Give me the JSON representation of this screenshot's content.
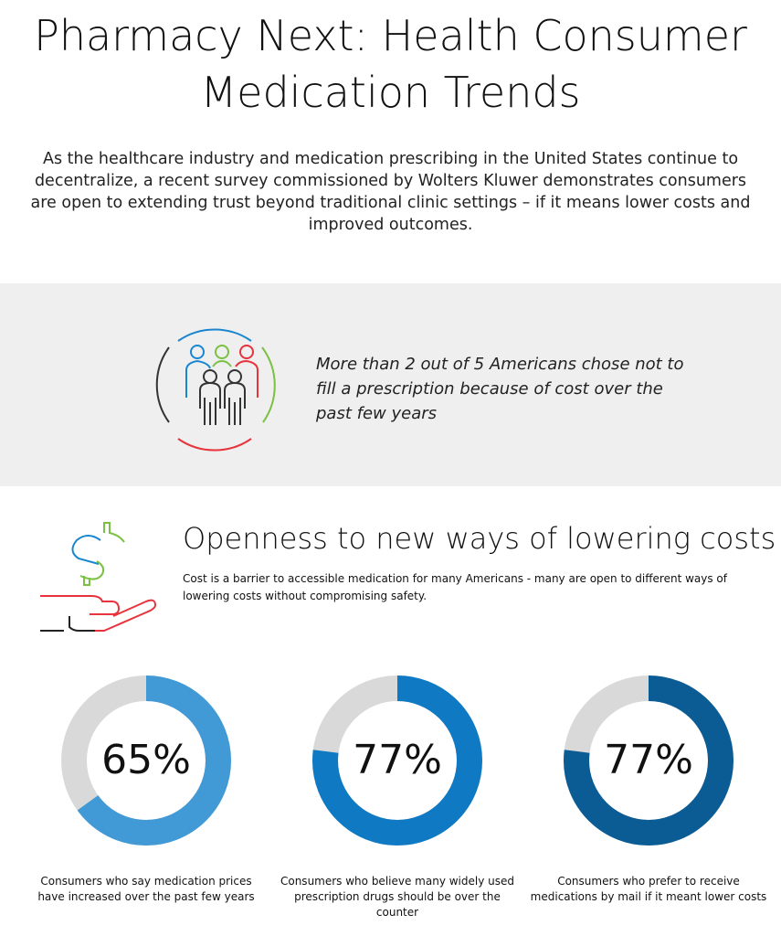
{
  "header": {
    "title_line1": "Pharmacy Next: Health Consumer",
    "title_line2": "Medication Trends",
    "intro": "As the healthcare industry and medication prescribing in the United States continue to decentralize, a recent survey commissioned by Wolters Kluwer demonstrates consumers are open to extending trust beyond traditional clinic settings – if it means lower costs and improved outcomes."
  },
  "highlight": {
    "icon": "people-group-icon",
    "text": "More than 2 out of 5 Americans chose not to fill a prescription because of cost over the past few years"
  },
  "section": {
    "icon": "dollar-hand-icon",
    "heading": "Openness to new ways of lowering costs",
    "subtext": "Cost is a barrier to accessible medication for many Americans - many are open to different ways of lowering costs without compromising safety."
  },
  "chart_data": [
    {
      "type": "pie",
      "label": "65%",
      "value": 65,
      "color": "#419ad6",
      "remainder_color": "#d9d9d9",
      "caption": "Consumers who say medication prices have increased over the past few years"
    },
    {
      "type": "pie",
      "label": "77%",
      "value": 77,
      "color": "#0f7ac3",
      "remainder_color": "#d9d9d9",
      "caption": "Consumers who believe many widely used prescription drugs should be over the counter"
    },
    {
      "type": "pie",
      "label": "77%",
      "value": 77,
      "color": "#0b5c94",
      "remainder_color": "#d9d9d9",
      "caption": "Consumers who prefer to receive medications by mail if it meant lower costs"
    }
  ]
}
